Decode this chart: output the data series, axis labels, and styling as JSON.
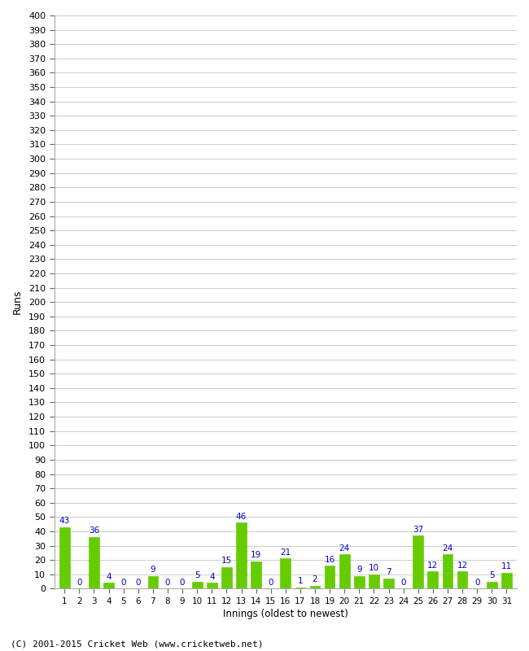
{
  "innings": [
    1,
    2,
    3,
    4,
    5,
    6,
    7,
    8,
    9,
    10,
    11,
    12,
    13,
    14,
    15,
    16,
    17,
    18,
    19,
    20,
    21,
    22,
    23,
    24,
    25,
    26,
    27,
    28,
    29,
    30,
    31
  ],
  "runs": [
    43,
    0,
    36,
    4,
    0,
    0,
    9,
    0,
    0,
    5,
    4,
    15,
    46,
    19,
    0,
    21,
    1,
    2,
    16,
    24,
    9,
    10,
    7,
    0,
    37,
    12,
    24,
    12,
    0,
    5,
    11
  ],
  "bar_color": "#66cc00",
  "bar_edge_color": "#66cc00",
  "label_color": "#0000cc",
  "ylabel": "Runs",
  "xlabel": "Innings (oldest to newest)",
  "footer": "(C) 2001-2015 Cricket Web (www.cricketweb.net)",
  "ylim": [
    0,
    400
  ],
  "background_color": "#ffffff",
  "grid_color": "#cccccc",
  "spine_color": "#aaaaaa"
}
